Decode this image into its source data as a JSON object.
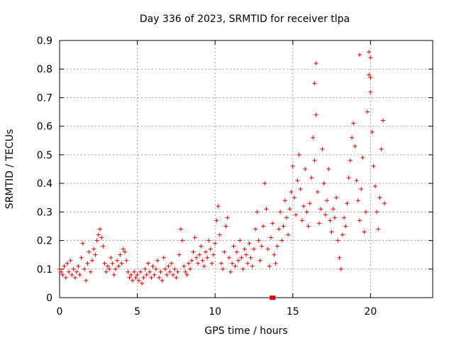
{
  "chart_data": {
    "type": "scatter",
    "title": "Day 336 of 2023, SRMTID for receiver tlpa",
    "xlabel": "GPS time / hours",
    "ylabel": "SRMTID / TECUs",
    "xlim": [
      0,
      24
    ],
    "ylim": [
      0,
      0.9
    ],
    "xticks": [
      0,
      5,
      10,
      15,
      20
    ],
    "yticks": [
      0,
      0.1,
      0.2,
      0.3,
      0.4,
      0.5,
      0.6,
      0.7,
      0.8,
      0.9
    ],
    "grid": true,
    "marker": "+",
    "series_color": "#e00000",
    "series": [
      {
        "name": "SRMTID",
        "points": [
          [
            0.0,
            0.1
          ],
          [
            0.1,
            0.09
          ],
          [
            0.2,
            0.08
          ],
          [
            0.3,
            0.11
          ],
          [
            0.4,
            0.07
          ],
          [
            0.5,
            0.12
          ],
          [
            0.6,
            0.09
          ],
          [
            0.7,
            0.13
          ],
          [
            0.8,
            0.08
          ],
          [
            0.9,
            0.1
          ],
          [
            1.0,
            0.07
          ],
          [
            1.1,
            0.09
          ],
          [
            1.2,
            0.11
          ],
          [
            1.3,
            0.08
          ],
          [
            1.4,
            0.14
          ],
          [
            1.5,
            0.19
          ],
          [
            1.6,
            0.1
          ],
          [
            1.7,
            0.06
          ],
          [
            1.8,
            0.12
          ],
          [
            1.9,
            0.16
          ],
          [
            2.0,
            0.09
          ],
          [
            2.1,
            0.13
          ],
          [
            2.2,
            0.17
          ],
          [
            2.3,
            0.15
          ],
          [
            2.4,
            0.2
          ],
          [
            2.5,
            0.22
          ],
          [
            2.6,
            0.24
          ],
          [
            2.7,
            0.21
          ],
          [
            2.8,
            0.18
          ],
          [
            2.9,
            0.12
          ],
          [
            3.0,
            0.09
          ],
          [
            3.1,
            0.11
          ],
          [
            3.2,
            0.1
          ],
          [
            3.3,
            0.14
          ],
          [
            3.4,
            0.12
          ],
          [
            3.5,
            0.08
          ],
          [
            3.6,
            0.1
          ],
          [
            3.7,
            0.13
          ],
          [
            3.8,
            0.11
          ],
          [
            3.9,
            0.15
          ],
          [
            4.0,
            0.12
          ],
          [
            4.1,
            0.17
          ],
          [
            4.2,
            0.16
          ],
          [
            4.3,
            0.13
          ],
          [
            4.4,
            0.09
          ],
          [
            4.5,
            0.07
          ],
          [
            4.6,
            0.08
          ],
          [
            4.7,
            0.06
          ],
          [
            4.8,
            0.09
          ],
          [
            4.9,
            0.07
          ],
          [
            5.0,
            0.08
          ],
          [
            5.1,
            0.06
          ],
          [
            5.2,
            0.09
          ],
          [
            5.3,
            0.05
          ],
          [
            5.4,
            0.07
          ],
          [
            5.5,
            0.1
          ],
          [
            5.6,
            0.08
          ],
          [
            5.7,
            0.12
          ],
          [
            5.8,
            0.09
          ],
          [
            5.9,
            0.07
          ],
          [
            6.0,
            0.11
          ],
          [
            6.1,
            0.08
          ],
          [
            6.2,
            0.1
          ],
          [
            6.3,
            0.13
          ],
          [
            6.4,
            0.07
          ],
          [
            6.5,
            0.09
          ],
          [
            6.6,
            0.06
          ],
          [
            6.7,
            0.14
          ],
          [
            6.8,
            0.1
          ],
          [
            6.9,
            0.08
          ],
          [
            7.0,
            0.11
          ],
          [
            7.1,
            0.09
          ],
          [
            7.2,
            0.12
          ],
          [
            7.3,
            0.08
          ],
          [
            7.4,
            0.1
          ],
          [
            7.5,
            0.07
          ],
          [
            7.6,
            0.09
          ],
          [
            7.7,
            0.15
          ],
          [
            7.8,
            0.24
          ],
          [
            7.9,
            0.2
          ],
          [
            8.0,
            0.11
          ],
          [
            8.1,
            0.09
          ],
          [
            8.2,
            0.08
          ],
          [
            8.3,
            0.12
          ],
          [
            8.4,
            0.1
          ],
          [
            8.5,
            0.13
          ],
          [
            8.6,
            0.16
          ],
          [
            8.7,
            0.21
          ],
          [
            8.8,
            0.14
          ],
          [
            8.9,
            0.12
          ],
          [
            9.0,
            0.15
          ],
          [
            9.1,
            0.18
          ],
          [
            9.2,
            0.13
          ],
          [
            9.3,
            0.11
          ],
          [
            9.4,
            0.16
          ],
          [
            9.5,
            0.14
          ],
          [
            9.6,
            0.2
          ],
          [
            9.7,
            0.17
          ],
          [
            9.8,
            0.12
          ],
          [
            9.9,
            0.15
          ],
          [
            10.0,
            0.19
          ],
          [
            10.1,
            0.27
          ],
          [
            10.2,
            0.32
          ],
          [
            10.3,
            0.22
          ],
          [
            10.4,
            0.12
          ],
          [
            10.5,
            0.1
          ],
          [
            10.6,
            0.16
          ],
          [
            10.7,
            0.25
          ],
          [
            10.8,
            0.28
          ],
          [
            10.9,
            0.14
          ],
          [
            11.0,
            0.09
          ],
          [
            11.1,
            0.12
          ],
          [
            11.2,
            0.18
          ],
          [
            11.3,
            0.11
          ],
          [
            11.4,
            0.16
          ],
          [
            11.5,
            0.13
          ],
          [
            11.6,
            0.2
          ],
          [
            11.7,
            0.14
          ],
          [
            11.8,
            0.1
          ],
          [
            11.9,
            0.17
          ],
          [
            12.0,
            0.15
          ],
          [
            12.1,
            0.12
          ],
          [
            12.2,
            0.19
          ],
          [
            12.3,
            0.14
          ],
          [
            12.4,
            0.11
          ],
          [
            12.5,
            0.17
          ],
          [
            12.6,
            0.24
          ],
          [
            12.7,
            0.3
          ],
          [
            12.8,
            0.2
          ],
          [
            12.9,
            0.13
          ],
          [
            13.0,
            0.18
          ],
          [
            13.1,
            0.25
          ],
          [
            13.2,
            0.4
          ],
          [
            13.3,
            0.31
          ],
          [
            13.4,
            0.17
          ],
          [
            13.5,
            0.11
          ],
          [
            13.6,
            0.21
          ],
          [
            13.7,
            0.26
          ],
          [
            13.8,
            0.15
          ],
          [
            13.9,
            0.12
          ],
          [
            14.0,
            0.18
          ],
          [
            14.1,
            0.24
          ],
          [
            14.2,
            0.3
          ],
          [
            14.3,
            0.2
          ],
          [
            14.4,
            0.25
          ],
          [
            14.5,
            0.34
          ],
          [
            14.6,
            0.28
          ],
          [
            14.7,
            0.22
          ],
          [
            14.8,
            0.31
          ],
          [
            14.9,
            0.37
          ],
          [
            15.0,
            0.46
          ],
          [
            15.1,
            0.35
          ],
          [
            15.2,
            0.29
          ],
          [
            15.3,
            0.41
          ],
          [
            15.4,
            0.5
          ],
          [
            15.5,
            0.38
          ],
          [
            15.6,
            0.27
          ],
          [
            15.7,
            0.32
          ],
          [
            15.8,
            0.45
          ],
          [
            15.9,
            0.3
          ],
          [
            16.0,
            0.25
          ],
          [
            16.1,
            0.33
          ],
          [
            16.2,
            0.42
          ],
          [
            16.3,
            0.56
          ],
          [
            16.4,
            0.48
          ],
          [
            16.5,
            0.64
          ],
          [
            16.6,
            0.37
          ],
          [
            16.7,
            0.26
          ],
          [
            16.8,
            0.31
          ],
          [
            16.9,
            0.52
          ],
          [
            17.0,
            0.4
          ],
          [
            17.1,
            0.29
          ],
          [
            17.2,
            0.34
          ],
          [
            17.3,
            0.45
          ],
          [
            17.4,
            0.27
          ],
          [
            17.5,
            0.23
          ],
          [
            17.6,
            0.31
          ],
          [
            17.7,
            0.28
          ],
          [
            17.8,
            0.35
          ],
          [
            17.9,
            0.2
          ],
          [
            18.0,
            0.14
          ],
          [
            18.1,
            0.1
          ],
          [
            18.2,
            0.22
          ],
          [
            18.3,
            0.28
          ],
          [
            18.4,
            0.25
          ],
          [
            18.5,
            0.33
          ],
          [
            18.6,
            0.42
          ],
          [
            18.7,
            0.48
          ],
          [
            18.8,
            0.56
          ],
          [
            18.9,
            0.61
          ],
          [
            19.0,
            0.53
          ],
          [
            19.1,
            0.41
          ],
          [
            19.2,
            0.34
          ],
          [
            19.3,
            0.27
          ],
          [
            19.4,
            0.38
          ],
          [
            19.5,
            0.49
          ],
          [
            19.6,
            0.23
          ],
          [
            19.7,
            0.3
          ],
          [
            19.8,
            0.65
          ],
          [
            19.9,
            0.78
          ],
          [
            20.0,
            0.72
          ],
          [
            20.1,
            0.58
          ],
          [
            20.2,
            0.46
          ],
          [
            20.3,
            0.39
          ],
          [
            20.4,
            0.3
          ],
          [
            20.5,
            0.24
          ],
          [
            20.6,
            0.35
          ],
          [
            20.7,
            0.52
          ],
          [
            20.8,
            0.62
          ],
          [
            20.9,
            0.33
          ]
        ],
        "outliers": [
          [
            16.5,
            0.82
          ],
          [
            19.3,
            0.85
          ],
          [
            19.9,
            0.86
          ],
          [
            20.0,
            0.84
          ],
          [
            16.4,
            0.75
          ],
          [
            20.0,
            0.77
          ]
        ],
        "square_marker": [
          13.7,
          0.0
        ]
      }
    ]
  }
}
